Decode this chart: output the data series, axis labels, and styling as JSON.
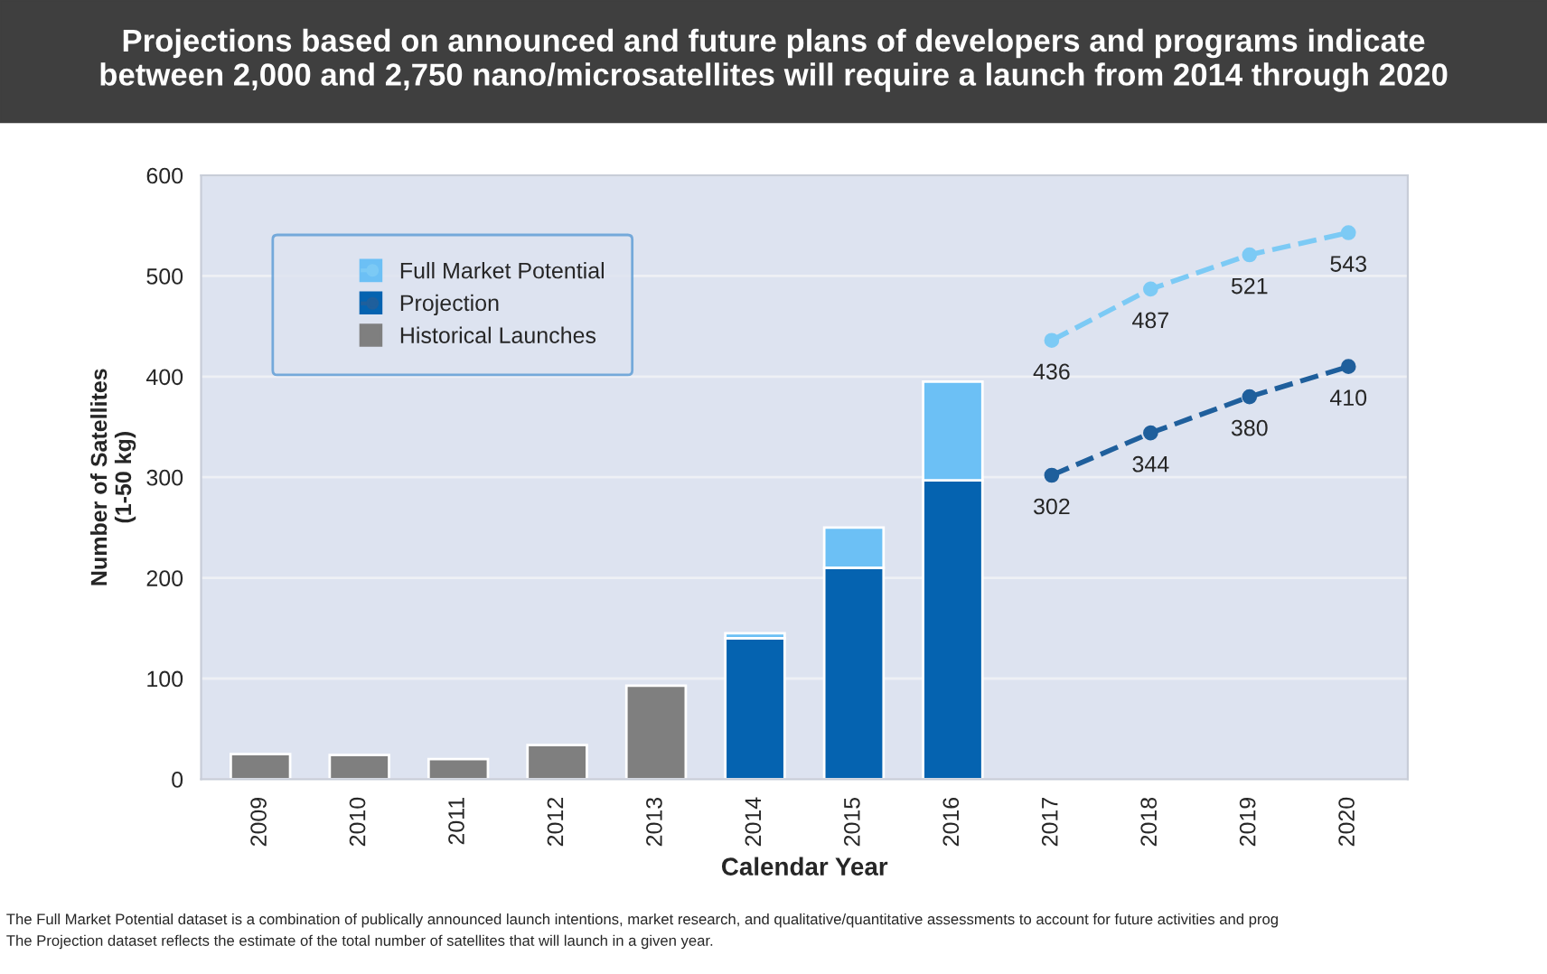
{
  "chart_data": {
    "type": "bar",
    "title": "Projections based on announced and future plans of developers and programs indicate\nbetween 2,000 and 2,750 nano/microsatellites will require a launch from 2014 through 2020",
    "xlabel": "Calendar Year",
    "ylabel": "Number of Satellites\n(1-50 kg)",
    "categories": [
      "2009",
      "2010",
      "2011",
      "2012",
      "2013",
      "2014",
      "2015",
      "2016",
      "2017",
      "2018",
      "2019",
      "2020"
    ],
    "stacked": true,
    "series": [
      {
        "name": "Historical Launches",
        "color": "#7f7f7f",
        "values": [
          25,
          24,
          20,
          34,
          93,
          null,
          null,
          null,
          null,
          null,
          null,
          null
        ]
      },
      {
        "name": "Projection",
        "color": "#0563b0",
        "values": [
          null,
          null,
          null,
          null,
          null,
          140,
          210,
          297,
          null,
          null,
          null,
          null
        ]
      },
      {
        "name": "Full Market Potential",
        "color": "#6cc0f5",
        "values": [
          null,
          null,
          null,
          null,
          null,
          5,
          40,
          98,
          null,
          null,
          null,
          null
        ]
      },
      {
        "type": "line",
        "color": "#1f5f9c",
        "values": [
          null,
          null,
          null,
          null,
          null,
          null,
          null,
          null,
          302,
          344,
          380,
          410
        ],
        "value_labels": [
          null,
          null,
          null,
          null,
          null,
          null,
          null,
          null,
          "302",
          "344",
          "380",
          "410"
        ]
      },
      {
        "type": "line",
        "color": "#7ccaf5",
        "values": [
          null,
          null,
          null,
          null,
          null,
          null,
          null,
          null,
          436,
          487,
          521,
          543
        ],
        "value_labels": [
          null,
          null,
          null,
          null,
          null,
          null,
          null,
          null,
          "436",
          "487",
          "521",
          "543"
        ]
      }
    ],
    "ylim": [
      0,
      600
    ],
    "yticks": [
      0,
      100,
      200,
      300,
      400,
      500,
      600
    ],
    "grid": "y",
    "legend": "top left",
    "marker": "circle",
    "line_style": "dashed",
    "annotations": [
      "The Full Market Potential dataset is a combination of publically announced launch intentions, market research, and qualitative/quantitative assessments to account for future activities and prog",
      "The Projection dataset reflects the estimate of the total number of satellites that will launch in a given year."
    ]
  }
}
